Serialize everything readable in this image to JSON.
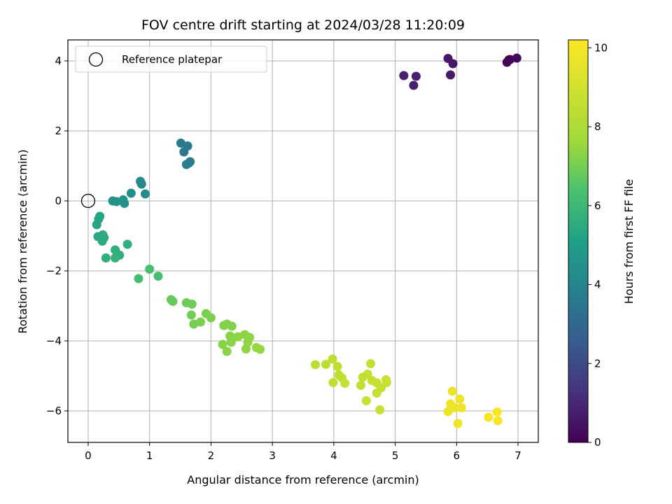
{
  "chart_data": {
    "type": "scatter",
    "title": "FOV centre drift starting at 2024/03/28 11:20:09",
    "xlabel": "Angular distance from reference (arcmin)",
    "ylabel": "Rotation from reference (arcmin)",
    "xlim": [
      -0.33,
      7.33
    ],
    "ylim": [
      -6.9,
      4.6
    ],
    "xticks": [
      0,
      1,
      2,
      3,
      4,
      5,
      6,
      7
    ],
    "yticks": [
      -6,
      -4,
      -2,
      0,
      2,
      4
    ],
    "grid": true,
    "legend": {
      "placement": "top-left",
      "entries": [
        "Reference platepar"
      ]
    },
    "reference_point": {
      "x": 0,
      "y": 0,
      "label": "Reference platepar"
    },
    "colorbar": {
      "label": "Hours from first FF file",
      "colormap": "viridis",
      "range": [
        0,
        10.2
      ],
      "ticks": [
        0,
        2,
        4,
        6,
        8,
        10
      ]
    },
    "points": [
      {
        "x": 5.14,
        "y": 3.58,
        "c": 0.8
      },
      {
        "x": 5.3,
        "y": 3.3,
        "c": 0.8
      },
      {
        "x": 5.34,
        "y": 3.56,
        "c": 0.8
      },
      {
        "x": 5.86,
        "y": 4.07,
        "c": 0.6
      },
      {
        "x": 5.94,
        "y": 3.92,
        "c": 0.6
      },
      {
        "x": 5.9,
        "y": 3.6,
        "c": 0.7
      },
      {
        "x": 6.82,
        "y": 3.96,
        "c": 0.1
      },
      {
        "x": 6.85,
        "y": 4.03,
        "c": 0.1
      },
      {
        "x": 6.87,
        "y": 4.04,
        "c": 0.1
      },
      {
        "x": 6.98,
        "y": 4.08,
        "c": 0.2
      },
      {
        "x": 1.51,
        "y": 1.65,
        "c": 3.6
      },
      {
        "x": 1.56,
        "y": 1.4,
        "c": 3.6
      },
      {
        "x": 1.62,
        "y": 1.57,
        "c": 3.6
      },
      {
        "x": 1.6,
        "y": 1.04,
        "c": 3.7
      },
      {
        "x": 1.64,
        "y": 1.08,
        "c": 3.7
      },
      {
        "x": 1.66,
        "y": 1.12,
        "c": 3.7
      },
      {
        "x": 0.85,
        "y": 0.56,
        "c": 4.2
      },
      {
        "x": 0.87,
        "y": 0.48,
        "c": 4.2
      },
      {
        "x": 0.93,
        "y": 0.2,
        "c": 4.3
      },
      {
        "x": 0.7,
        "y": 0.22,
        "c": 4.4
      },
      {
        "x": 0.57,
        "y": 0.03,
        "c": 4.5
      },
      {
        "x": 0.59,
        "y": -0.07,
        "c": 4.5
      },
      {
        "x": 0.46,
        "y": -0.02,
        "c": 4.6
      },
      {
        "x": 0.4,
        "y": 0.0,
        "c": 4.6
      },
      {
        "x": 0.19,
        "y": -0.44,
        "c": 5.2
      },
      {
        "x": 0.17,
        "y": -0.52,
        "c": 5.2
      },
      {
        "x": 0.14,
        "y": -0.68,
        "c": 5.3
      },
      {
        "x": 0.16,
        "y": -1.02,
        "c": 5.4
      },
      {
        "x": 0.24,
        "y": -0.97,
        "c": 5.4
      },
      {
        "x": 0.26,
        "y": -1.05,
        "c": 5.5
      },
      {
        "x": 0.23,
        "y": -1.15,
        "c": 5.5
      },
      {
        "x": 0.29,
        "y": -1.63,
        "c": 5.6
      },
      {
        "x": 0.44,
        "y": -1.4,
        "c": 5.6
      },
      {
        "x": 0.51,
        "y": -1.55,
        "c": 5.6
      },
      {
        "x": 0.44,
        "y": -1.63,
        "c": 5.7
      },
      {
        "x": 0.64,
        "y": -1.24,
        "c": 5.6
      },
      {
        "x": 1.0,
        "y": -1.95,
        "c": 6.3
      },
      {
        "x": 1.14,
        "y": -2.15,
        "c": 6.3
      },
      {
        "x": 0.82,
        "y": -2.22,
        "c": 6.2
      },
      {
        "x": 1.35,
        "y": -2.82,
        "c": 6.8
      },
      {
        "x": 1.38,
        "y": -2.87,
        "c": 6.8
      },
      {
        "x": 1.6,
        "y": -2.91,
        "c": 6.9
      },
      {
        "x": 1.69,
        "y": -2.95,
        "c": 6.9
      },
      {
        "x": 1.68,
        "y": -3.26,
        "c": 7.0
      },
      {
        "x": 1.72,
        "y": -3.52,
        "c": 7.0
      },
      {
        "x": 1.83,
        "y": -3.46,
        "c": 7.1
      },
      {
        "x": 1.92,
        "y": -3.22,
        "c": 7.1
      },
      {
        "x": 2.0,
        "y": -3.34,
        "c": 7.1
      },
      {
        "x": 2.21,
        "y": -3.56,
        "c": 7.2
      },
      {
        "x": 2.26,
        "y": -3.52,
        "c": 7.2
      },
      {
        "x": 2.34,
        "y": -3.58,
        "c": 7.2
      },
      {
        "x": 2.31,
        "y": -3.86,
        "c": 7.3
      },
      {
        "x": 2.19,
        "y": -4.1,
        "c": 7.3
      },
      {
        "x": 2.26,
        "y": -4.3,
        "c": 7.3
      },
      {
        "x": 2.33,
        "y": -4.04,
        "c": 7.3
      },
      {
        "x": 2.44,
        "y": -3.88,
        "c": 7.4
      },
      {
        "x": 2.55,
        "y": -3.82,
        "c": 7.4
      },
      {
        "x": 2.63,
        "y": -3.9,
        "c": 7.4
      },
      {
        "x": 2.6,
        "y": -4.04,
        "c": 7.4
      },
      {
        "x": 2.57,
        "y": -4.23,
        "c": 7.4
      },
      {
        "x": 2.74,
        "y": -4.19,
        "c": 7.5
      },
      {
        "x": 2.8,
        "y": -4.24,
        "c": 7.5
      },
      {
        "x": 3.7,
        "y": -4.68,
        "c": 8.4
      },
      {
        "x": 3.87,
        "y": -4.67,
        "c": 8.4
      },
      {
        "x": 3.98,
        "y": -4.52,
        "c": 8.5
      },
      {
        "x": 4.06,
        "y": -4.73,
        "c": 8.5
      },
      {
        "x": 4.08,
        "y": -4.97,
        "c": 8.5
      },
      {
        "x": 3.99,
        "y": -5.19,
        "c": 8.5
      },
      {
        "x": 4.13,
        "y": -5.05,
        "c": 8.5
      },
      {
        "x": 4.18,
        "y": -5.21,
        "c": 8.6
      },
      {
        "x": 4.44,
        "y": -5.27,
        "c": 8.6
      },
      {
        "x": 4.47,
        "y": -5.04,
        "c": 8.6
      },
      {
        "x": 4.55,
        "y": -4.95,
        "c": 8.6
      },
      {
        "x": 4.6,
        "y": -4.65,
        "c": 8.6
      },
      {
        "x": 4.62,
        "y": -5.13,
        "c": 8.7
      },
      {
        "x": 4.7,
        "y": -5.2,
        "c": 8.7
      },
      {
        "x": 4.7,
        "y": -5.49,
        "c": 8.7
      },
      {
        "x": 4.77,
        "y": -5.34,
        "c": 8.7
      },
      {
        "x": 4.85,
        "y": -5.11,
        "c": 8.8
      },
      {
        "x": 4.86,
        "y": -5.19,
        "c": 8.8
      },
      {
        "x": 4.53,
        "y": -5.71,
        "c": 8.8
      },
      {
        "x": 4.75,
        "y": -5.97,
        "c": 8.8
      },
      {
        "x": 5.93,
        "y": -5.44,
        "c": 9.7
      },
      {
        "x": 5.9,
        "y": -5.8,
        "c": 9.7
      },
      {
        "x": 5.86,
        "y": -6.02,
        "c": 9.7
      },
      {
        "x": 5.97,
        "y": -5.91,
        "c": 9.7
      },
      {
        "x": 6.05,
        "y": -5.66,
        "c": 9.8
      },
      {
        "x": 6.08,
        "y": -5.91,
        "c": 9.8
      },
      {
        "x": 6.02,
        "y": -6.36,
        "c": 9.8
      },
      {
        "x": 6.52,
        "y": -6.18,
        "c": 10.0
      },
      {
        "x": 6.66,
        "y": -6.03,
        "c": 10.1
      },
      {
        "x": 6.67,
        "y": -6.28,
        "c": 10.1
      }
    ]
  }
}
